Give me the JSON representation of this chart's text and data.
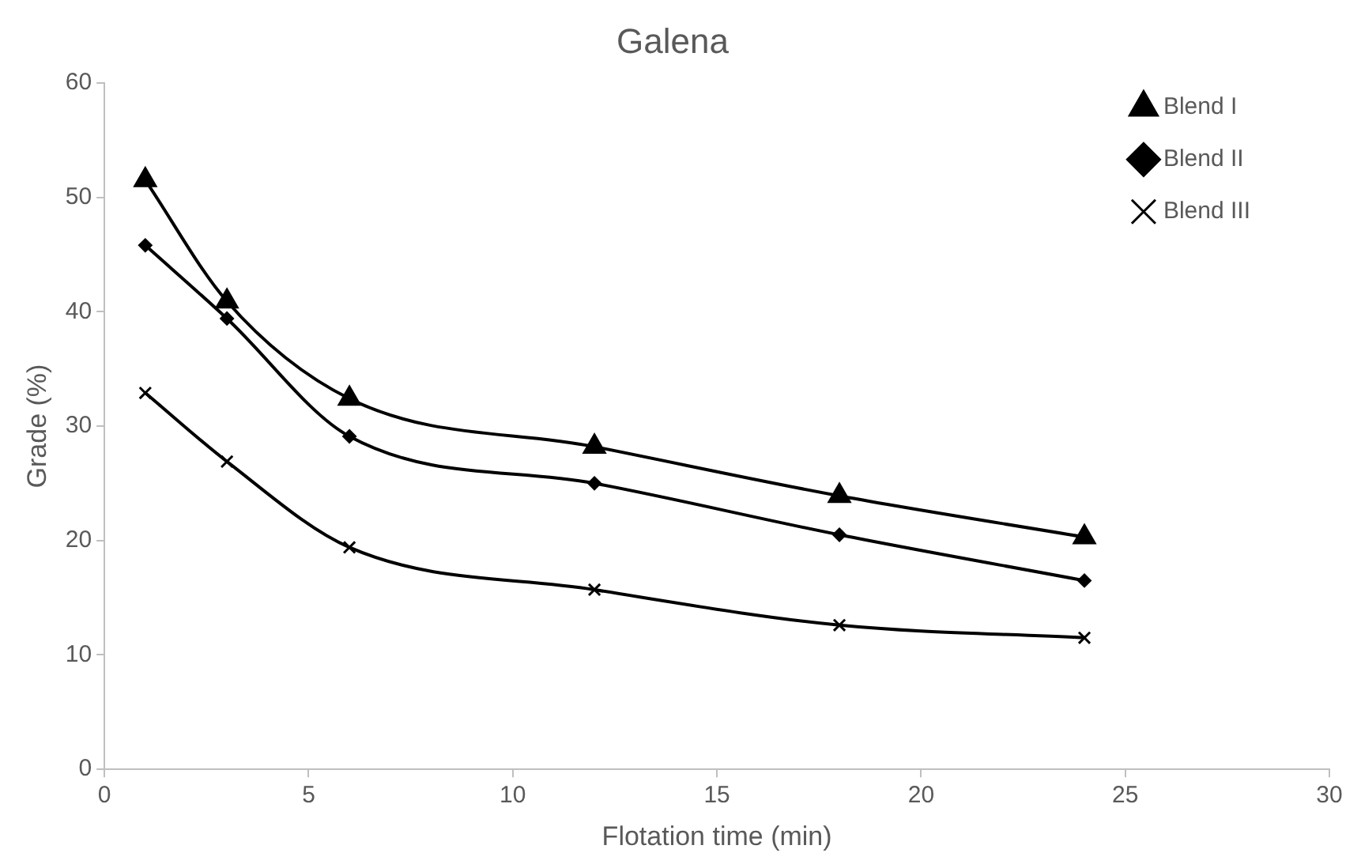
{
  "chart_data": {
    "type": "line",
    "title": "Galena",
    "xlabel": "Flotation time (min)",
    "ylabel": "Grade (%)",
    "x": [
      1,
      3,
      6,
      12,
      18,
      24
    ],
    "series": [
      {
        "name": "Blend I",
        "color": "#000000",
        "marker": "triangle",
        "values": [
          51.5,
          40.9,
          32.4,
          28.2,
          23.9,
          20.3
        ]
      },
      {
        "name": "Blend II",
        "color": "#000000",
        "marker": "diamond",
        "values": [
          45.8,
          39.4,
          29.1,
          25.0,
          20.5,
          16.5
        ]
      },
      {
        "name": "Blend III",
        "color": "#000000",
        "marker": "cross",
        "values": [
          32.9,
          26.9,
          19.4,
          15.7,
          12.6,
          11.5
        ]
      }
    ],
    "xlim": [
      0,
      30
    ],
    "xticks": [
      0,
      5,
      10,
      15,
      20,
      25,
      30
    ],
    "ylim": [
      0,
      60
    ],
    "yticks": [
      0,
      10,
      20,
      30,
      40,
      50,
      60
    ],
    "grid": false,
    "legend": "top right",
    "line_style": "solid"
  }
}
